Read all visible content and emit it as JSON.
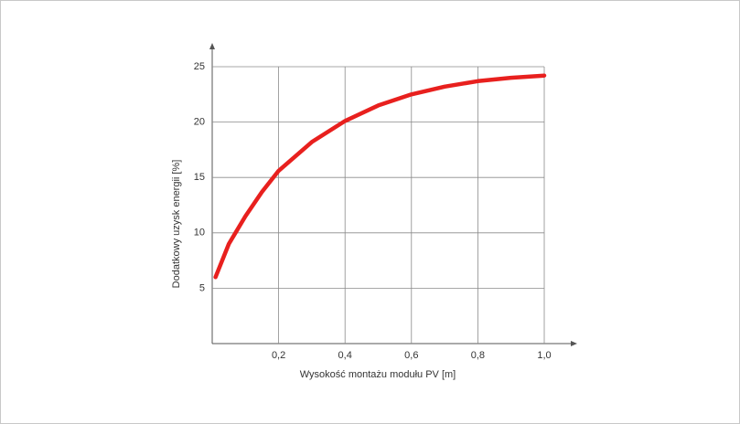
{
  "chart_data": {
    "type": "line",
    "x_label": "Wysokość montażu modułu PV [m]",
    "y_label": "Dodatkowy uzysk energii [%]",
    "x": [
      0.01,
      0.05,
      0.1,
      0.15,
      0.2,
      0.3,
      0.4,
      0.5,
      0.6,
      0.7,
      0.8,
      0.9,
      1.0
    ],
    "values": [
      6,
      9,
      11.5,
      13.7,
      15.6,
      18.2,
      20.1,
      21.5,
      22.5,
      23.2,
      23.7,
      24.0,
      24.2
    ],
    "color": "#e8201e",
    "xlim": [
      0,
      1.0
    ],
    "xticks": [
      {
        "value": 0.2,
        "label": "0,2"
      },
      {
        "value": 0.4,
        "label": "0,4"
      },
      {
        "value": 0.6,
        "label": "0,6"
      },
      {
        "value": 0.8,
        "label": "0,8"
      },
      {
        "value": 1.0,
        "label": "1,0"
      }
    ],
    "ylim": [
      0,
      25
    ],
    "yticks": [
      5,
      10,
      15,
      20,
      25
    ],
    "grid": true
  }
}
